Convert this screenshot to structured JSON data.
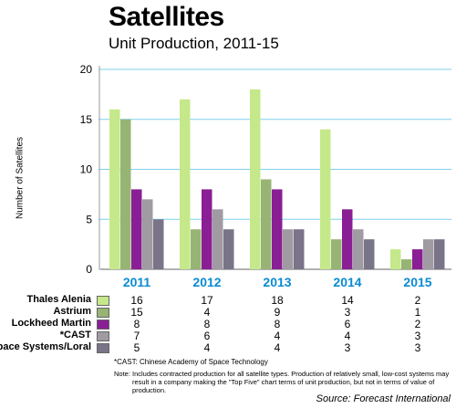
{
  "title": "Satellites",
  "subtitle": "Unit Production, 2011-15",
  "chart_data": {
    "type": "bar",
    "categories": [
      "2011",
      "2012",
      "2013",
      "2014",
      "2015"
    ],
    "ylabel": "Number of Satellites",
    "ylim": [
      0,
      20
    ],
    "yticks": [
      "0",
      "5",
      "10",
      "15",
      "20"
    ],
    "grid": true,
    "series": [
      {
        "name": "Thales Alenia",
        "color": "#c5e88a",
        "values": [
          16,
          17,
          18,
          14,
          2
        ]
      },
      {
        "name": "Astrium",
        "color": "#97b475",
        "values": [
          15,
          4,
          9,
          3,
          1
        ]
      },
      {
        "name": "Lockheed Martin",
        "color": "#8a1e94",
        "values": [
          8,
          8,
          8,
          6,
          2
        ]
      },
      {
        "name": "*CAST",
        "color": "#a09aa2",
        "values": [
          7,
          6,
          4,
          4,
          3
        ]
      },
      {
        "name": "Space Systems/Loral",
        "color": "#7a7488",
        "values": [
          5,
          4,
          4,
          3,
          3
        ]
      }
    ]
  },
  "footnote": "*CAST: Chinese Academy of Space Technology",
  "note_label": "Note:",
  "note_text": "Includes contracted production for all satellite types. Production of relatively small, low-cost systems may result in a company making the \"Top Five\" chart terms of unit production, but not in terms of value of production.",
  "source": "Source:  Forecast International"
}
